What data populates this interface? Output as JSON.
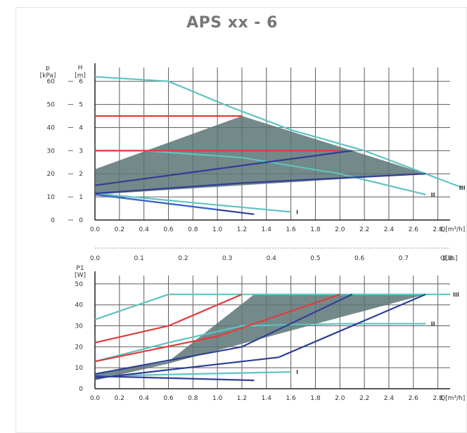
{
  "title": "APS xx - 6",
  "colors": {
    "red": "#e23b3b",
    "navy": "#2f3f96",
    "cyan": "#5fc3c0",
    "blue": "#3a68c8",
    "pink": "#f19a9a",
    "fill": "#5c7474",
    "grid": "#5c5c5c"
  },
  "chart_data": [
    {
      "type": "line",
      "title": "APS xx - 6",
      "xlabel": "Q[m³/h]",
      "x_ticks": [
        "0.0",
        "0.2",
        "0.4",
        "0.6",
        "0.8",
        "1.0",
        "1.2",
        "1.4",
        "1.6",
        "1.8",
        "2.0",
        "2.2",
        "2.4",
        "2.6",
        "2.8"
      ],
      "xlim": [
        0,
        2.9
      ],
      "ylabel_left": "p [kPa]",
      "ylabel_right": "H [m]",
      "y_ticks_kpa": [
        "0",
        "10",
        "20",
        "30",
        "40",
        "50",
        "60"
      ],
      "y_ticks_m": [
        "0",
        "1",
        "2",
        "3",
        "4",
        "5",
        "6"
      ],
      "ylim": [
        0,
        6.6
      ],
      "secondary_x": {
        "xlabel": "Q[l/s]",
        "ticks": [
          "0.0",
          "0.1",
          "0.2",
          "0.3",
          "0.4",
          "0.5",
          "0.6",
          "0.7",
          "0.8"
        ]
      },
      "curve_labels": [
        "I",
        "II",
        "III"
      ],
      "operating_area": [
        [
          0,
          2.2
        ],
        [
          1.2,
          4.5
        ],
        [
          2.7,
          2.0
        ],
        [
          0,
          1.1
        ]
      ],
      "series": [
        {
          "id": "I",
          "color": "cyan",
          "x": [
            0,
            1.6
          ],
          "y": [
            1.15,
            0.35
          ]
        },
        {
          "id": "II",
          "color": "cyan",
          "x": [
            0,
            0.4,
            1.2,
            2.0,
            2.7
          ],
          "y": [
            3.0,
            3.0,
            2.7,
            2.0,
            1.1
          ]
        },
        {
          "id": "III",
          "color": "cyan",
          "x": [
            0,
            0.6,
            1.1,
            1.6,
            2.2,
            2.7,
            3.0
          ],
          "y": [
            6.2,
            6.0,
            4.9,
            3.9,
            3.0,
            2.0,
            1.4
          ]
        },
        {
          "id": "const-p-max",
          "color": "red",
          "x": [
            0,
            1.2
          ],
          "y": [
            4.5,
            4.5
          ]
        },
        {
          "id": "const-p-mid",
          "color": "red",
          "x": [
            0,
            2.0
          ],
          "y": [
            3.0,
            3.0
          ]
        },
        {
          "id": "prop-max",
          "color": "navy",
          "x": [
            0,
            2.1
          ],
          "y": [
            1.5,
            3.0
          ]
        },
        {
          "id": "prop-mid",
          "color": "navy",
          "x": [
            0,
            1.2,
            2.7
          ],
          "y": [
            1.15,
            1.6,
            2.0
          ]
        },
        {
          "id": "low",
          "color": "navy",
          "x": [
            0,
            1.3
          ],
          "y": [
            1.1,
            0.25
          ]
        },
        {
          "id": "low-2",
          "color": "blue",
          "x": [
            0,
            1.0
          ],
          "y": [
            1.1,
            0.45
          ]
        }
      ]
    },
    {
      "type": "line",
      "ylabel": "P1 [W]",
      "xlabel": "Q[m³/h]",
      "x_ticks": [
        "0.0",
        "0.2",
        "0.4",
        "0.6",
        "0.8",
        "1.0",
        "1.2",
        "1.4",
        "1.6",
        "1.8",
        "2.0",
        "2.2",
        "2.4",
        "2.6",
        "2.8"
      ],
      "xlim": [
        0,
        2.9
      ],
      "y_ticks": [
        "0",
        "10",
        "20",
        "30",
        "40",
        "50"
      ],
      "ylim": [
        0,
        54
      ],
      "curve_labels": [
        "I",
        "II",
        "III"
      ],
      "operating_area": [
        [
          0,
          7
        ],
        [
          0.6,
          13
        ],
        [
          1.3,
          45
        ],
        [
          2.7,
          45
        ],
        [
          0.6,
          12
        ],
        [
          0,
          4
        ]
      ],
      "series": [
        {
          "id": "I",
          "color": "cyan",
          "x": [
            0,
            1.6
          ],
          "y": [
            6,
            8
          ]
        },
        {
          "id": "II",
          "color": "cyan",
          "x": [
            0,
            0.6,
            1.2,
            2.0,
            2.7
          ],
          "y": [
            13,
            22,
            30,
            31,
            31
          ]
        },
        {
          "id": "III",
          "color": "cyan",
          "x": [
            0,
            0.6,
            2.9
          ],
          "y": [
            33,
            45,
            45
          ]
        },
        {
          "id": "red-upper",
          "color": "red",
          "x": [
            0,
            0.6,
            1.2
          ],
          "y": [
            22,
            30,
            45
          ]
        },
        {
          "id": "red-lower",
          "color": "red",
          "x": [
            0,
            1.0,
            2.0
          ],
          "y": [
            13,
            25,
            45
          ]
        },
        {
          "id": "navy-upper",
          "color": "navy",
          "x": [
            0,
            1.2,
            2.1
          ],
          "y": [
            7,
            20,
            45
          ]
        },
        {
          "id": "navy-lower",
          "color": "navy",
          "x": [
            0,
            1.5,
            2.7
          ],
          "y": [
            5,
            15,
            45
          ]
        },
        {
          "id": "navy-low",
          "color": "navy",
          "x": [
            0,
            1.3
          ],
          "y": [
            6,
            4
          ]
        }
      ]
    }
  ]
}
